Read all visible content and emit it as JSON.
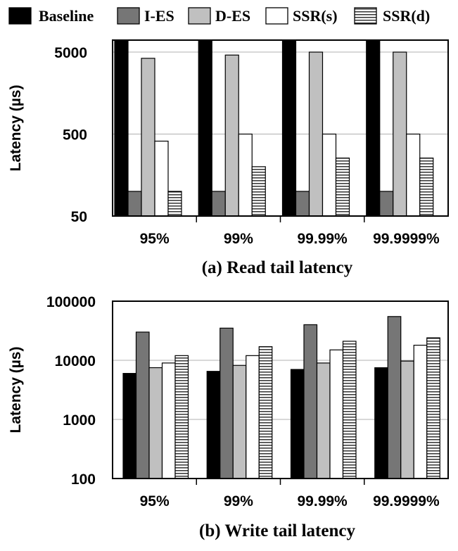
{
  "legend": [
    {
      "name": "Baseline",
      "fill": "#000000",
      "pattern": "solid"
    },
    {
      "name": "I-ES",
      "fill": "#767676",
      "pattern": "solid"
    },
    {
      "name": "D-ES",
      "fill": "#c0c0c0",
      "pattern": "solid"
    },
    {
      "name": "SSR(s)",
      "fill": "#ffffff",
      "pattern": "solid"
    },
    {
      "name": "SSR(d)",
      "fill": "#ffffff",
      "pattern": "horizontal-stripes"
    }
  ],
  "colors": {
    "axis": "#000000",
    "grid": "#b0b0b0",
    "stroke": "#000000"
  },
  "chart_data": [
    {
      "type": "bar",
      "title": "(a) Read tail latency",
      "xlabel": "",
      "ylabel": "Latency (µs)",
      "yscale": "log",
      "ylim": [
        50,
        7000
      ],
      "yticks": [
        50,
        500,
        5000
      ],
      "ytick_labels": [
        "50",
        "500",
        "5000"
      ],
      "grid": true,
      "categories": [
        "95%",
        "99%",
        "99.99%",
        "99.9999%"
      ],
      "series": [
        {
          "name": "Baseline",
          "values": [
            7000,
            7000,
            7000,
            7000
          ]
        },
        {
          "name": "I-ES",
          "values": [
            100,
            100,
            100,
            100
          ]
        },
        {
          "name": "D-ES",
          "values": [
            4200,
            4600,
            5000,
            5000
          ]
        },
        {
          "name": "SSR(s)",
          "values": [
            410,
            500,
            500,
            500
          ]
        },
        {
          "name": "SSR(d)",
          "values": [
            100,
            200,
            255,
            255
          ]
        }
      ]
    },
    {
      "type": "bar",
      "title": "(b) Write tail latency",
      "xlabel": "",
      "ylabel": "Latency (µs)",
      "yscale": "log",
      "ylim": [
        100,
        100000
      ],
      "yticks": [
        100,
        1000,
        10000,
        100000
      ],
      "ytick_labels": [
        "100",
        "1000",
        "10000",
        "100000"
      ],
      "grid": true,
      "categories": [
        "95%",
        "99%",
        "99.99%",
        "99.9999%"
      ],
      "series": [
        {
          "name": "Baseline",
          "values": [
            6000,
            6500,
            7000,
            7500
          ]
        },
        {
          "name": "I-ES",
          "values": [
            30000,
            35000,
            40000,
            55000
          ]
        },
        {
          "name": "D-ES",
          "values": [
            7500,
            8200,
            9000,
            9700
          ]
        },
        {
          "name": "SSR(s)",
          "values": [
            9000,
            12000,
            15000,
            18000
          ]
        },
        {
          "name": "SSR(d)",
          "values": [
            12000,
            17000,
            21000,
            24000
          ]
        }
      ]
    }
  ]
}
